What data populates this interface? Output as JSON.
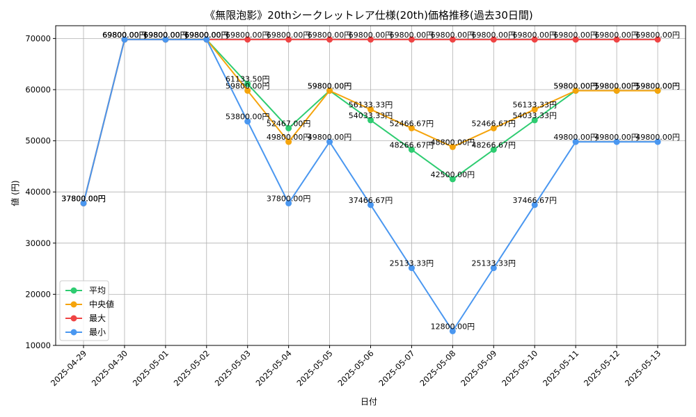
{
  "chart_data": {
    "type": "line",
    "title": "《無限泡影》20thシークレットレア仕様(20th)価格推移(過去30日間)",
    "xlabel": "日付",
    "ylabel": "値 (円)",
    "categories": [
      "2025-04-29",
      "2025-04-30",
      "2025-05-01",
      "2025-05-02",
      "2025-05-03",
      "2025-05-04",
      "2025-05-05",
      "2025-05-06",
      "2025-05-07",
      "2025-05-08",
      "2025-05-09",
      "2025-05-10",
      "2025-05-11",
      "2025-05-12",
      "2025-05-13"
    ],
    "ylim": [
      10000,
      72500
    ],
    "yticks": [
      10000,
      20000,
      30000,
      40000,
      50000,
      60000,
      70000
    ],
    "grid": true,
    "legend_position": "lower-left",
    "series": [
      {
        "name": "平均",
        "color": "#2ecc71",
        "values": [
          37800,
          69800,
          69800,
          69800,
          61133.5,
          52467,
          59800,
          54033.33,
          48266.67,
          42500,
          48266.67,
          54033.33,
          59800,
          59800,
          59800
        ],
        "labels": [
          "37800.00円",
          "69800.00円",
          "69800.00円",
          "69800.00円",
          "61133.50円",
          "52467.00円",
          "59800.00円",
          "54033.33円",
          "48266.67円",
          "42500.00円",
          "48266.67円",
          "54033.33円",
          "59800.00円",
          "59800.00円",
          "59800.00円"
        ]
      },
      {
        "name": "中央値",
        "color": "#f5a40c",
        "values": [
          37800,
          69800,
          69800,
          69800,
          59800,
          49800,
          59800,
          56133.33,
          52466.67,
          48800,
          52466.67,
          56133.33,
          59800,
          59800,
          59800
        ],
        "labels": [
          "37800.00円",
          "69800.00円",
          "69800.00円",
          "69800.00円",
          "59800.00円",
          "49800.00円",
          "59800.00円",
          "56133.33円",
          "52466.67円",
          "48800.00円",
          "52466.67円",
          "56133.33円",
          "59800.00円",
          "59800.00円",
          "59800.00円"
        ]
      },
      {
        "name": "最大",
        "color": "#ef4444",
        "values": [
          37800,
          69800,
          69800,
          69800,
          69800,
          69800,
          69800,
          69800,
          69800,
          69800,
          69800,
          69800,
          69800,
          69800,
          69800
        ],
        "labels": [
          "37800.00円",
          "69800.00円",
          "69800.00円",
          "69800.00円",
          "69800.00円",
          "69800.00円",
          "69800.00円",
          "69800.00円",
          "69800.00円",
          "69800.00円",
          "69800.00円",
          "69800.00円",
          "69800.00円",
          "69800.00円",
          "69800.00円"
        ]
      },
      {
        "name": "最小",
        "color": "#4a97f0",
        "values": [
          37800,
          69800,
          69800,
          69800,
          53800,
          37800,
          49800,
          37466.67,
          25133.33,
          12800,
          25133.33,
          37466.67,
          49800,
          49800,
          49800
        ],
        "labels": [
          "37800.00円",
          "69800.00円",
          "69800.00円",
          "69800.00円",
          "53800.00円",
          "37800.00円",
          "49800.00円",
          "37466.67円",
          "25133.33円",
          "12800.00円",
          "25133.33円",
          "37466.67円",
          "49800.00円",
          "49800.00円",
          "49800.00円"
        ]
      }
    ]
  }
}
